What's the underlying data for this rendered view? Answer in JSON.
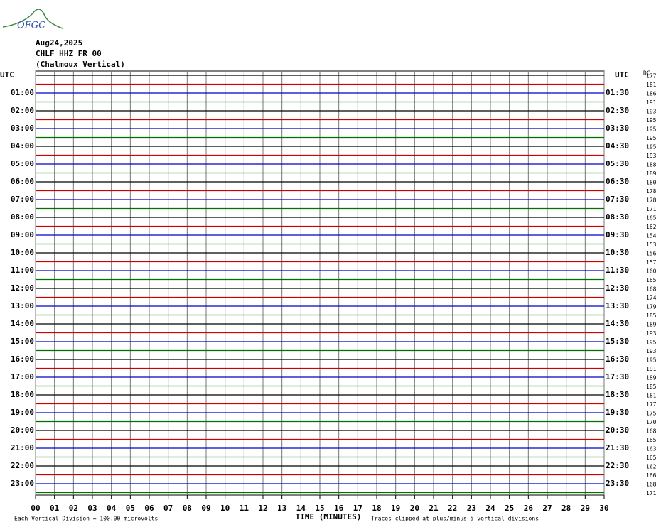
{
  "logo": "OFGC",
  "header": {
    "date": "Aug24,2025",
    "station": "CHLF HHZ FR 00",
    "location": "(Chalmoux Vertical)"
  },
  "left_labels": [
    "UTC",
    "01:00",
    "02:00",
    "03:00",
    "04:00",
    "05:00",
    "06:00",
    "07:00",
    "08:00",
    "09:00",
    "10:00",
    "11:00",
    "12:00",
    "13:00",
    "14:00",
    "15:00",
    "16:00",
    "17:00",
    "18:00",
    "19:00",
    "20:00",
    "21:00",
    "22:00",
    "23:00"
  ],
  "right_labels": [
    "UTC",
    "01:30",
    "02:30",
    "03:30",
    "04:30",
    "05:30",
    "06:30",
    "07:30",
    "08:30",
    "09:30",
    "10:30",
    "11:30",
    "12:30",
    "13:30",
    "14:30",
    "15:30",
    "16:30",
    "17:30",
    "18:30",
    "19:30",
    "20:30",
    "21:30",
    "22:30",
    "23:30"
  ],
  "dc_label": "DC",
  "dc_values": [
    177,
    181,
    186,
    191,
    193,
    195,
    195,
    195,
    195,
    193,
    188,
    189,
    180,
    178,
    178,
    171,
    165,
    162,
    154,
    153,
    156,
    157,
    160,
    165,
    168,
    174,
    179,
    185,
    189,
    193,
    195,
    193,
    195,
    191,
    189,
    185,
    181,
    177,
    175,
    170,
    168,
    165,
    163,
    165,
    162,
    166,
    168,
    171
  ],
  "x_labels": [
    "00",
    "01",
    "02",
    "03",
    "04",
    "05",
    "06",
    "07",
    "08",
    "09",
    "10",
    "11",
    "12",
    "13",
    "14",
    "15",
    "16",
    "17",
    "18",
    "19",
    "20",
    "21",
    "22",
    "23",
    "24",
    "25",
    "26",
    "27",
    "28",
    "29",
    "30"
  ],
  "x_title": "TIME (MINUTES)",
  "footer": {
    "scale": "Each Vertical Division =  100.00 microvolts",
    "clip": "Traces clipped at plus/minus 5 vertical divisions"
  }
}
